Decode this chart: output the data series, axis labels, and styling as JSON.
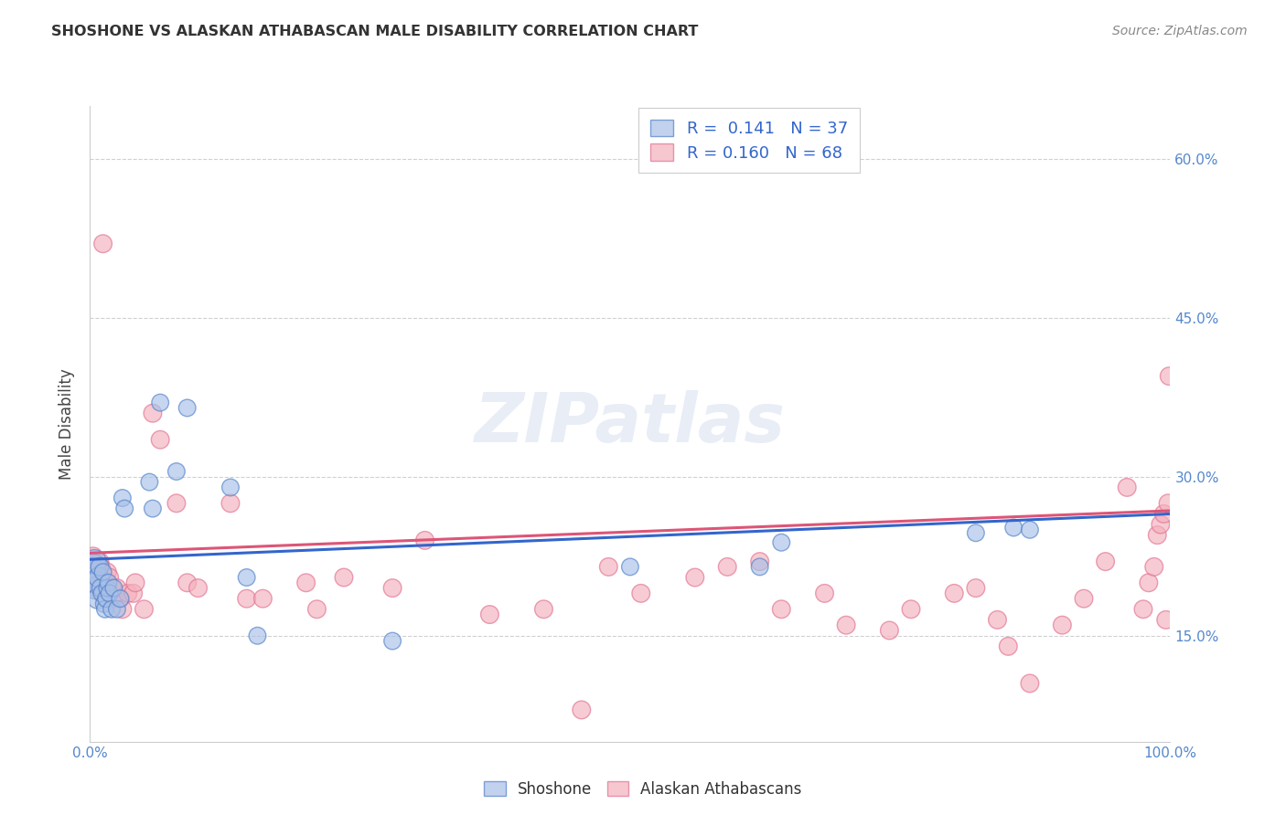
{
  "title": "SHOSHONE VS ALASKAN ATHABASCAN MALE DISABILITY CORRELATION CHART",
  "source": "Source: ZipAtlas.com",
  "ylabel": "Male Disability",
  "xlim": [
    0,
    1.0
  ],
  "ylim": [
    0.05,
    0.65
  ],
  "yticks": [
    0.15,
    0.3,
    0.45,
    0.6
  ],
  "ytick_labels": [
    "15.0%",
    "30.0%",
    "45.0%",
    "60.0%"
  ],
  "xticks": [
    0.0,
    0.1,
    0.2,
    0.3,
    0.4,
    0.5,
    0.6,
    0.7,
    0.8,
    0.9,
    1.0
  ],
  "xtick_labels": [
    "0.0%",
    "",
    "",
    "",
    "",
    "",
    "",
    "",
    "",
    "",
    "100.0%"
  ],
  "blue_color": "#a8c0e8",
  "pink_color": "#f4b0bc",
  "blue_edge_color": "#5080c8",
  "pink_edge_color": "#e07090",
  "blue_line_color": "#3366cc",
  "pink_line_color": "#dd5577",
  "legend_blue_R": "0.141",
  "legend_blue_N": "37",
  "legend_pink_R": "0.160",
  "legend_pink_N": "68",
  "shoshone_x": [
    0.003,
    0.004,
    0.005,
    0.006,
    0.007,
    0.008,
    0.009,
    0.01,
    0.011,
    0.012,
    0.013,
    0.014,
    0.015,
    0.016,
    0.017,
    0.018,
    0.02,
    0.022,
    0.025,
    0.028,
    0.03,
    0.032,
    0.055,
    0.058,
    0.065,
    0.08,
    0.09,
    0.13,
    0.145,
    0.155,
    0.28,
    0.5,
    0.62,
    0.64,
    0.82,
    0.855,
    0.87
  ],
  "shoshone_y": [
    0.215,
    0.22,
    0.195,
    0.2,
    0.185,
    0.205,
    0.215,
    0.195,
    0.19,
    0.21,
    0.18,
    0.175,
    0.185,
    0.195,
    0.2,
    0.19,
    0.175,
    0.195,
    0.175,
    0.185,
    0.28,
    0.27,
    0.295,
    0.27,
    0.37,
    0.305,
    0.365,
    0.29,
    0.205,
    0.15,
    0.145,
    0.215,
    0.215,
    0.238,
    0.247,
    0.252,
    0.25
  ],
  "shoshone_size": [
    400,
    350,
    300,
    300,
    250,
    250,
    200,
    200,
    180,
    180,
    180,
    180,
    180,
    180,
    180,
    180,
    180,
    180,
    180,
    180,
    180,
    180,
    180,
    180,
    180,
    180,
    180,
    180,
    180,
    180,
    180,
    180,
    180,
    180,
    180,
    180,
    180
  ],
  "athabascan_x": [
    0.003,
    0.004,
    0.005,
    0.006,
    0.007,
    0.008,
    0.009,
    0.01,
    0.011,
    0.012,
    0.013,
    0.014,
    0.015,
    0.016,
    0.018,
    0.02,
    0.022,
    0.025,
    0.028,
    0.03,
    0.035,
    0.04,
    0.042,
    0.05,
    0.058,
    0.065,
    0.08,
    0.09,
    0.1,
    0.13,
    0.145,
    0.16,
    0.2,
    0.21,
    0.235,
    0.28,
    0.31,
    0.37,
    0.42,
    0.455,
    0.48,
    0.51,
    0.56,
    0.59,
    0.62,
    0.64,
    0.68,
    0.7,
    0.74,
    0.76,
    0.8,
    0.82,
    0.84,
    0.85,
    0.87,
    0.9,
    0.92,
    0.94,
    0.96,
    0.975,
    0.98,
    0.985,
    0.988,
    0.991,
    0.994,
    0.996,
    0.998,
    0.999
  ],
  "athabascan_y": [
    0.225,
    0.21,
    0.205,
    0.195,
    0.215,
    0.2,
    0.22,
    0.215,
    0.195,
    0.52,
    0.19,
    0.185,
    0.2,
    0.21,
    0.205,
    0.195,
    0.185,
    0.195,
    0.185,
    0.175,
    0.19,
    0.19,
    0.2,
    0.175,
    0.36,
    0.335,
    0.275,
    0.2,
    0.195,
    0.275,
    0.185,
    0.185,
    0.2,
    0.175,
    0.205,
    0.195,
    0.24,
    0.17,
    0.175,
    0.08,
    0.215,
    0.19,
    0.205,
    0.215,
    0.22,
    0.175,
    0.19,
    0.16,
    0.155,
    0.175,
    0.19,
    0.195,
    0.165,
    0.14,
    0.105,
    0.16,
    0.185,
    0.22,
    0.29,
    0.175,
    0.2,
    0.215,
    0.245,
    0.255,
    0.265,
    0.165,
    0.275,
    0.395
  ],
  "athabascan_size": [
    200,
    200,
    200,
    200,
    200,
    200,
    200,
    200,
    200,
    200,
    200,
    200,
    200,
    200,
    200,
    200,
    200,
    200,
    200,
    200,
    200,
    200,
    200,
    200,
    200,
    200,
    200,
    200,
    200,
    200,
    200,
    200,
    200,
    200,
    200,
    200,
    200,
    200,
    200,
    200,
    200,
    200,
    200,
    200,
    200,
    200,
    200,
    200,
    200,
    200,
    200,
    200,
    200,
    200,
    200,
    200,
    200,
    200,
    200,
    200,
    200,
    200,
    200,
    200,
    200,
    200,
    200,
    200
  ],
  "blue_trend_x": [
    0.0,
    1.0
  ],
  "blue_trend_y": [
    0.222,
    0.265
  ],
  "pink_trend_x": [
    0.0,
    1.0
  ],
  "pink_trend_y": [
    0.228,
    0.268
  ],
  "watermark": "ZIPatlas",
  "background_color": "#ffffff",
  "grid_color": "#d0d0d0",
  "title_color": "#333333",
  "source_color": "#888888",
  "tick_color": "#5588cc",
  "ylabel_color": "#444444"
}
